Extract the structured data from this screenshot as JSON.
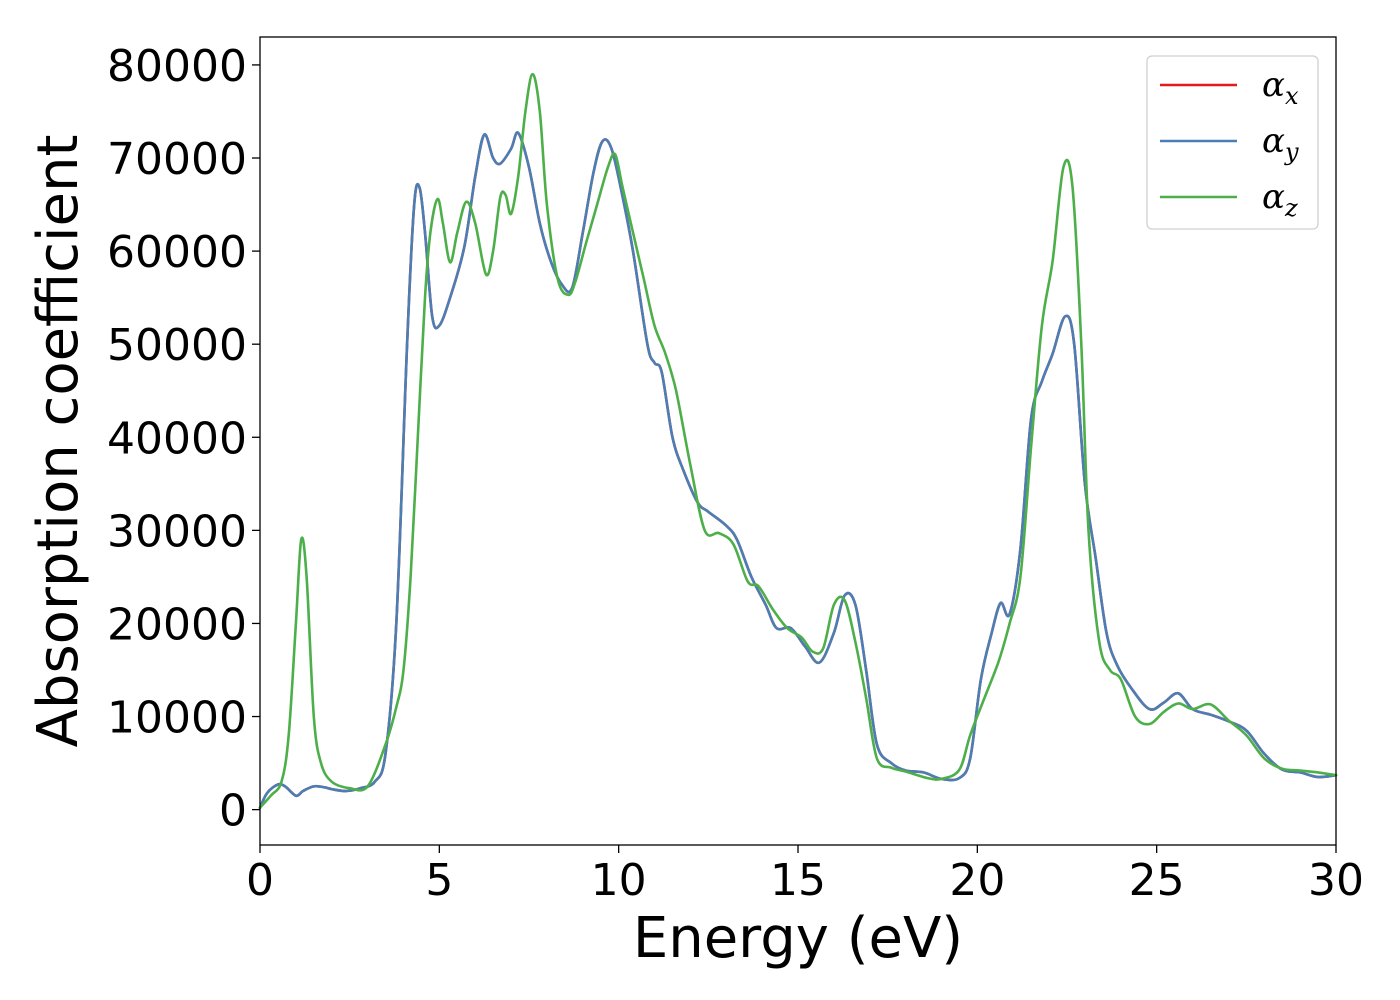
{
  "chart_data": {
    "type": "line",
    "xlabel": "Energy (eV)",
    "ylabel": "Absorption coefficient",
    "xlim": [
      0,
      30
    ],
    "ylim": [
      -3800,
      83000
    ],
    "xticks": [
      0,
      5,
      10,
      15,
      20,
      25,
      30
    ],
    "yticks": [
      0,
      10000,
      20000,
      30000,
      40000,
      50000,
      60000,
      70000,
      80000
    ],
    "grid": false,
    "legend_position": "top-right",
    "series": [
      {
        "name": "αx",
        "name_base": "α",
        "name_sub": "x",
        "color": "#e41a1c",
        "x": [
          0,
          0.2,
          0.5,
          0.7,
          1.0,
          1.2,
          1.5,
          1.8,
          2.0,
          2.4,
          2.8,
          3.2,
          3.5,
          3.8,
          4.1,
          4.3,
          4.45,
          4.6,
          4.8,
          5.0,
          5.3,
          5.7,
          6.0,
          6.25,
          6.5,
          6.7,
          7.0,
          7.2,
          7.5,
          7.8,
          8.1,
          8.4,
          8.7,
          9.0,
          9.3,
          9.55,
          9.8,
          10.1,
          10.4,
          10.8,
          11.0,
          11.2,
          11.5,
          11.8,
          12.2,
          12.5,
          13.0,
          13.3,
          13.7,
          14.1,
          14.4,
          14.8,
          15.2,
          15.6,
          16.0,
          16.3,
          16.6,
          16.9,
          17.2,
          17.6,
          18.0,
          18.5,
          19.0,
          19.5,
          19.8,
          20.1,
          20.4,
          20.65,
          20.9,
          21.2,
          21.5,
          21.8,
          22.1,
          22.45,
          22.7,
          23.0,
          23.3,
          23.6,
          23.9,
          24.3,
          24.8,
          25.2,
          25.6,
          26.0,
          26.5,
          27.0,
          27.5,
          28.0,
          28.5,
          29.0,
          29.5,
          30.0
        ],
        "y": [
          200,
          1800,
          2700,
          2500,
          1500,
          2000,
          2500,
          2400,
          2200,
          2000,
          2300,
          3000,
          6000,
          20000,
          50000,
          65000,
          66800,
          62000,
          53000,
          52000,
          55000,
          60500,
          68000,
          72500,
          70000,
          69400,
          71000,
          72700,
          69000,
          63000,
          59000,
          56500,
          56000,
          62000,
          68500,
          71800,
          71000,
          66000,
          60000,
          50000,
          48000,
          47000,
          40000,
          36500,
          33000,
          32000,
          30500,
          29000,
          25000,
          22000,
          19500,
          19500,
          17500,
          15800,
          19000,
          23000,
          22000,
          15000,
          7000,
          5000,
          4200,
          4000,
          3300,
          3400,
          5500,
          14000,
          19000,
          22200,
          21000,
          28000,
          42000,
          46000,
          49000,
          53000,
          50000,
          35000,
          27000,
          19000,
          15500,
          13000,
          10800,
          11500,
          12500,
          10800,
          10200,
          9500,
          8500,
          6000,
          4300,
          4000,
          3500,
          3700
        ]
      },
      {
        "name": "αy",
        "name_base": "α",
        "name_sub": "y",
        "color": "#4a7fb5",
        "x": [
          0,
          0.2,
          0.5,
          0.7,
          1.0,
          1.2,
          1.5,
          1.8,
          2.0,
          2.4,
          2.8,
          3.2,
          3.5,
          3.8,
          4.1,
          4.3,
          4.45,
          4.6,
          4.8,
          5.0,
          5.3,
          5.7,
          6.0,
          6.25,
          6.5,
          6.7,
          7.0,
          7.2,
          7.5,
          7.8,
          8.1,
          8.4,
          8.7,
          9.0,
          9.3,
          9.55,
          9.8,
          10.1,
          10.4,
          10.8,
          11.0,
          11.2,
          11.5,
          11.8,
          12.2,
          12.5,
          13.0,
          13.3,
          13.7,
          14.1,
          14.4,
          14.8,
          15.2,
          15.6,
          16.0,
          16.3,
          16.6,
          16.9,
          17.2,
          17.6,
          18.0,
          18.5,
          19.0,
          19.5,
          19.8,
          20.1,
          20.4,
          20.65,
          20.9,
          21.2,
          21.5,
          21.8,
          22.1,
          22.45,
          22.7,
          23.0,
          23.3,
          23.6,
          23.9,
          24.3,
          24.8,
          25.2,
          25.6,
          26.0,
          26.5,
          27.0,
          27.5,
          28.0,
          28.5,
          29.0,
          29.5,
          30.0
        ],
        "y": [
          200,
          1800,
          2700,
          2500,
          1500,
          2000,
          2500,
          2400,
          2200,
          2000,
          2300,
          3000,
          6000,
          20000,
          50000,
          65000,
          66800,
          62000,
          53000,
          52000,
          55000,
          60500,
          68000,
          72500,
          70000,
          69400,
          71000,
          72700,
          69000,
          63000,
          59000,
          56500,
          56000,
          62000,
          68500,
          71800,
          71000,
          66000,
          60000,
          50000,
          48000,
          47000,
          40000,
          36500,
          33000,
          32000,
          30500,
          29000,
          25000,
          22000,
          19500,
          19500,
          17500,
          15800,
          19000,
          23000,
          22000,
          15000,
          7000,
          5000,
          4200,
          4000,
          3300,
          3400,
          5500,
          14000,
          19000,
          22200,
          21000,
          28000,
          42000,
          46000,
          49000,
          53000,
          50000,
          35000,
          27000,
          19000,
          15500,
          13000,
          10800,
          11500,
          12500,
          10800,
          10200,
          9500,
          8500,
          6000,
          4300,
          4000,
          3500,
          3700
        ]
      },
      {
        "name": "αz",
        "name_base": "α",
        "name_sub": "z",
        "color": "#4daf4a",
        "x": [
          0,
          0.3,
          0.6,
          0.8,
          1.0,
          1.15,
          1.3,
          1.5,
          1.7,
          2.0,
          2.5,
          3.0,
          3.5,
          3.8,
          4.0,
          4.2,
          4.4,
          4.6,
          4.75,
          4.95,
          5.1,
          5.3,
          5.5,
          5.75,
          6.0,
          6.3,
          6.5,
          6.7,
          6.85,
          7.0,
          7.2,
          7.4,
          7.6,
          7.8,
          8.0,
          8.3,
          8.6,
          8.8,
          9.1,
          9.4,
          9.7,
          9.9,
          10.1,
          10.4,
          10.7,
          11.0,
          11.3,
          11.6,
          12.0,
          12.4,
          12.8,
          13.2,
          13.6,
          13.9,
          14.3,
          14.7,
          15.1,
          15.4,
          15.7,
          16.0,
          16.3,
          16.6,
          16.9,
          17.2,
          17.6,
          18.0,
          18.6,
          19.0,
          19.5,
          19.8,
          20.2,
          20.6,
          20.9,
          21.2,
          21.5,
          21.8,
          22.1,
          22.4,
          22.65,
          22.9,
          23.1,
          23.4,
          23.7,
          24.0,
          24.4,
          24.8,
          25.2,
          25.6,
          26.0,
          26.5,
          27.0,
          27.5,
          28.0,
          28.5,
          29.0,
          29.5,
          30.0
        ],
        "y": [
          200,
          1500,
          3000,
          8000,
          20000,
          29000,
          25000,
          10000,
          5000,
          3000,
          2300,
          2500,
          7000,
          11000,
          15000,
          25000,
          40000,
          55000,
          62000,
          65600,
          63000,
          58800,
          62000,
          65300,
          63000,
          57500,
          60000,
          65800,
          66000,
          64000,
          68000,
          75000,
          79000,
          75000,
          65000,
          57000,
          55300,
          56800,
          61000,
          65000,
          69000,
          70400,
          67000,
          62000,
          57000,
          52000,
          49000,
          45000,
          37000,
          30000,
          29700,
          28500,
          24500,
          24000,
          21500,
          19500,
          18500,
          17000,
          17300,
          22000,
          22500,
          18000,
          12000,
          5500,
          4500,
          4100,
          3400,
          3300,
          4300,
          8000,
          12000,
          16000,
          20000,
          25000,
          39000,
          52000,
          59000,
          69000,
          67000,
          50000,
          30000,
          18000,
          15000,
          14000,
          10000,
          9200,
          10500,
          11400,
          10800,
          11300,
          9600,
          8000,
          5500,
          4400,
          4200,
          4000,
          3700
        ]
      }
    ]
  }
}
